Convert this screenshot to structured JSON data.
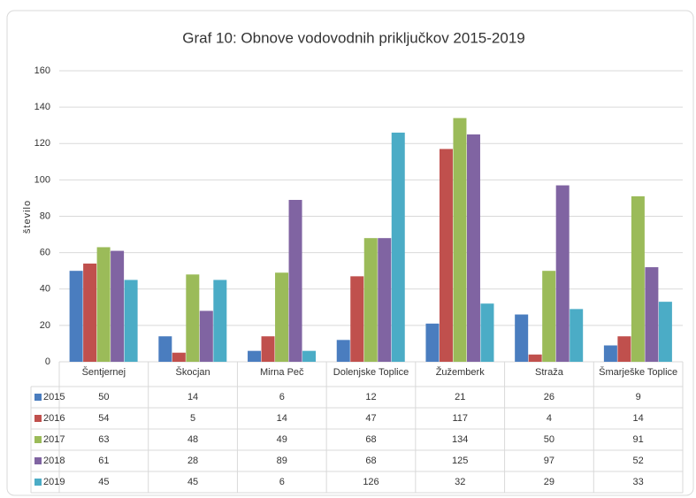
{
  "chart_data": {
    "type": "bar",
    "title": "Graf 10: Obnove vodovodnih priključkov 2015-2019",
    "y_label": "število",
    "categories": [
      "Šentjernej",
      "Škocjan",
      "Mirna Peč",
      "Dolenjske Toplice",
      "Žužemberk",
      "Straža",
      "Šmarješke Toplice"
    ],
    "series": [
      {
        "name": "2015",
        "color": "#4a7dbf",
        "values": [
          50,
          14,
          6,
          12,
          21,
          26,
          9
        ]
      },
      {
        "name": "2016",
        "color": "#c0504d",
        "values": [
          54,
          5,
          14,
          47,
          117,
          4,
          14
        ]
      },
      {
        "name": "2017",
        "color": "#9bbb59",
        "values": [
          63,
          48,
          49,
          68,
          134,
          50,
          91
        ]
      },
      {
        "name": "2018",
        "color": "#8064a2",
        "values": [
          61,
          28,
          89,
          68,
          125,
          97,
          52
        ]
      },
      {
        "name": "2019",
        "color": "#4bacc6",
        "values": [
          45,
          45,
          6,
          126,
          32,
          29,
          33
        ]
      }
    ],
    "ylim": [
      0,
      160
    ],
    "yticks": [
      0,
      20,
      40,
      60,
      80,
      100,
      120,
      140,
      160
    ],
    "grid": true
  }
}
